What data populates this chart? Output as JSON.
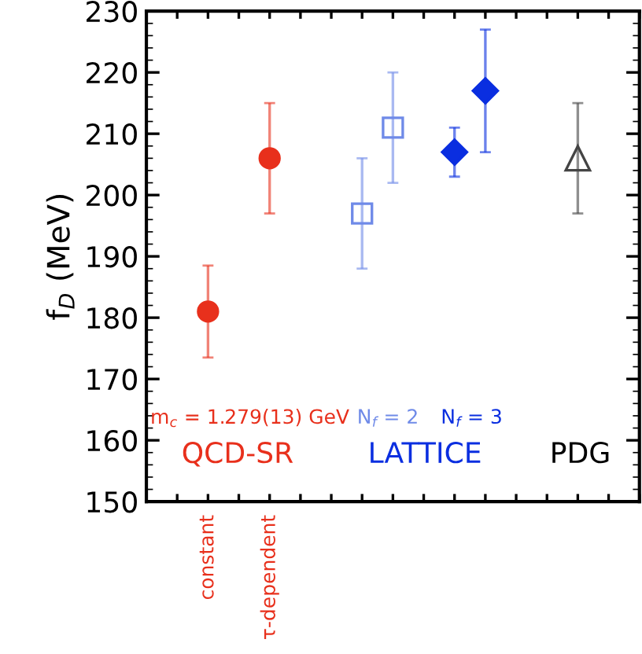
{
  "chart_data": {
    "type": "scatter",
    "ylabel": "f$_{D}$ (MeV)",
    "categories": [
      null,
      null,
      "constant",
      null,
      "τ-dependent",
      null,
      null,
      null,
      null,
      null,
      null,
      null,
      null,
      null,
      null,
      null,
      null
    ],
    "ylim": [
      150,
      230
    ],
    "yticks": [
      150,
      160,
      170,
      180,
      190,
      200,
      210,
      220,
      230
    ],
    "grid": false,
    "legend": false,
    "series": [
      {
        "color": "#e8301c",
        "marker": "circle",
        "values": [
          null,
          null,
          181,
          null,
          206,
          null,
          null,
          null,
          null,
          null,
          null,
          null,
          null,
          null,
          null,
          null,
          null
        ],
        "errors": [
          null,
          null,
          7.5,
          null,
          9,
          null,
          null,
          null,
          null,
          null,
          null,
          null,
          null,
          null,
          null,
          null,
          null
        ]
      },
      {
        "color": "#6f8ae8",
        "marker": "square",
        "values": [
          null,
          null,
          null,
          null,
          null,
          null,
          null,
          197,
          211,
          null,
          null,
          null,
          null,
          null,
          null,
          null,
          null
        ],
        "errors": [
          null,
          null,
          null,
          null,
          null,
          null,
          null,
          9,
          9,
          null,
          null,
          null,
          null,
          null,
          null,
          null,
          null
        ]
      },
      {
        "color": "#0a2ee0",
        "marker": "diamond",
        "values": [
          null,
          null,
          null,
          null,
          null,
          null,
          null,
          null,
          null,
          null,
          207,
          217,
          null,
          null,
          null,
          null,
          null
        ],
        "errors": [
          null,
          null,
          null,
          null,
          null,
          null,
          null,
          null,
          null,
          null,
          4,
          10,
          null,
          null,
          null,
          null,
          null
        ]
      },
      {
        "color": "#444444",
        "marker": "triangle",
        "values": [
          null,
          null,
          null,
          null,
          null,
          null,
          null,
          null,
          null,
          null,
          null,
          null,
          null,
          null,
          206,
          null,
          null
        ],
        "errors": [
          null,
          null,
          null,
          null,
          null,
          null,
          null,
          null,
          null,
          null,
          null,
          null,
          null,
          null,
          9,
          null,
          null
        ]
      }
    ],
    "annotations": [
      "m$_{c}$ = 1.279(13) GeV",
      "N$_{f}$ = 2",
      "N$_{f}$ = 3",
      "QCD-SR",
      "LATTICE",
      "PDG"
    ]
  }
}
